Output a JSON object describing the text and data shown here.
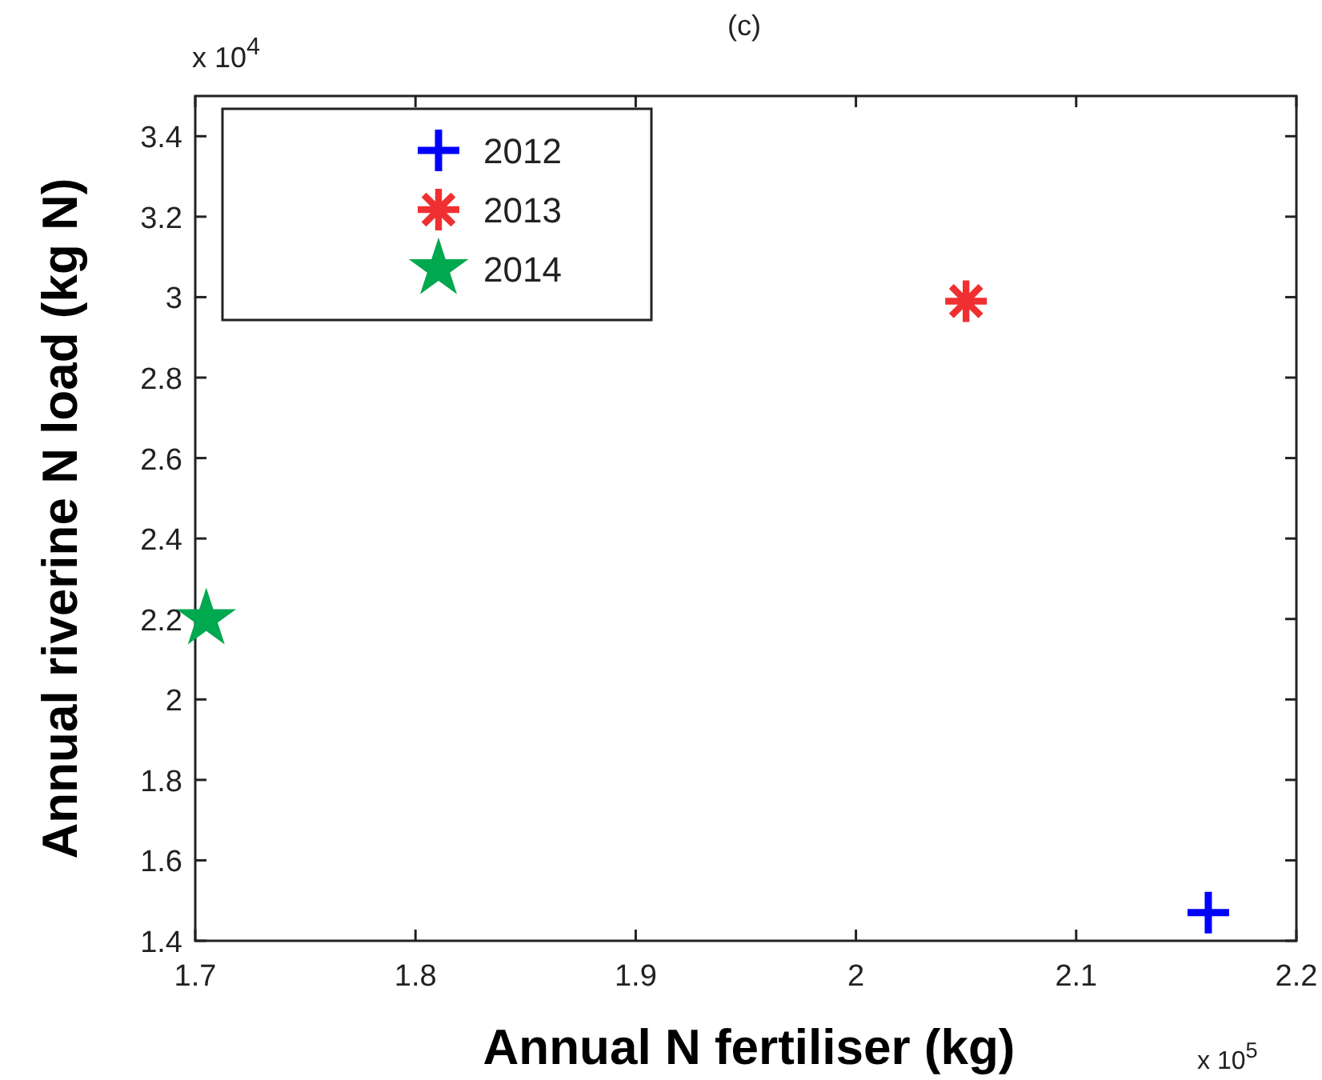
{
  "chart_data": {
    "type": "scatter",
    "title": "(c)",
    "xlabel": "Annual N fertiliser (kg)",
    "ylabel": "Annual riverine N load (kg N)",
    "annotations": [
      "x 10$^{4}$",
      "x 10$^{5}$"
    ],
    "xlim": [
      1.7,
      2.2
    ],
    "xticks": [
      1.7,
      1.8,
      1.9,
      2,
      2.1,
      2.2
    ],
    "ylim": [
      1.4,
      3.5
    ],
    "yticks": [
      1.4,
      1.6,
      1.8,
      2,
      2.2,
      2.4,
      2.6,
      2.8,
      3,
      3.2,
      3.4
    ],
    "legend": "top left",
    "grid": false,
    "series": [
      {
        "name": "2012",
        "color": "#0000ff",
        "marker": "cross",
        "x": [
          2.16
        ],
        "values": [
          1.47
        ]
      },
      {
        "name": "2013",
        "color": "#f03030",
        "marker": "asterisk",
        "x": [
          2.05
        ],
        "values": [
          2.99
        ]
      },
      {
        "name": "2014",
        "color": "#00a84f",
        "marker": "star",
        "x": [
          1.705
        ],
        "values": [
          2.2
        ]
      }
    ]
  }
}
